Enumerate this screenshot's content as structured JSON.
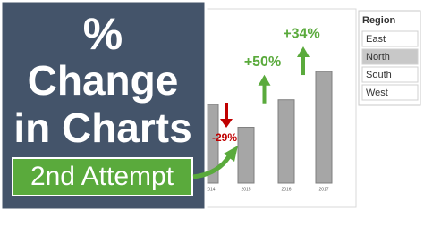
{
  "headline": [
    "%",
    "Change",
    "in Charts"
  ],
  "badge": "2nd Attempt",
  "chart": {
    "type": "bar",
    "categories": [
      "2014",
      "2015",
      "2016",
      "2017"
    ],
    "values": [
      100,
      71,
      106,
      142
    ],
    "annotations": [
      "-29%",
      "+50%",
      "+34%"
    ],
    "bar_color": "#a6a6a6",
    "down_color": "#c00000",
    "up_color": "#5aaa3c"
  },
  "slicer": {
    "title": "Region",
    "items": [
      "East",
      "North",
      "South",
      "West"
    ],
    "selected": 1
  }
}
